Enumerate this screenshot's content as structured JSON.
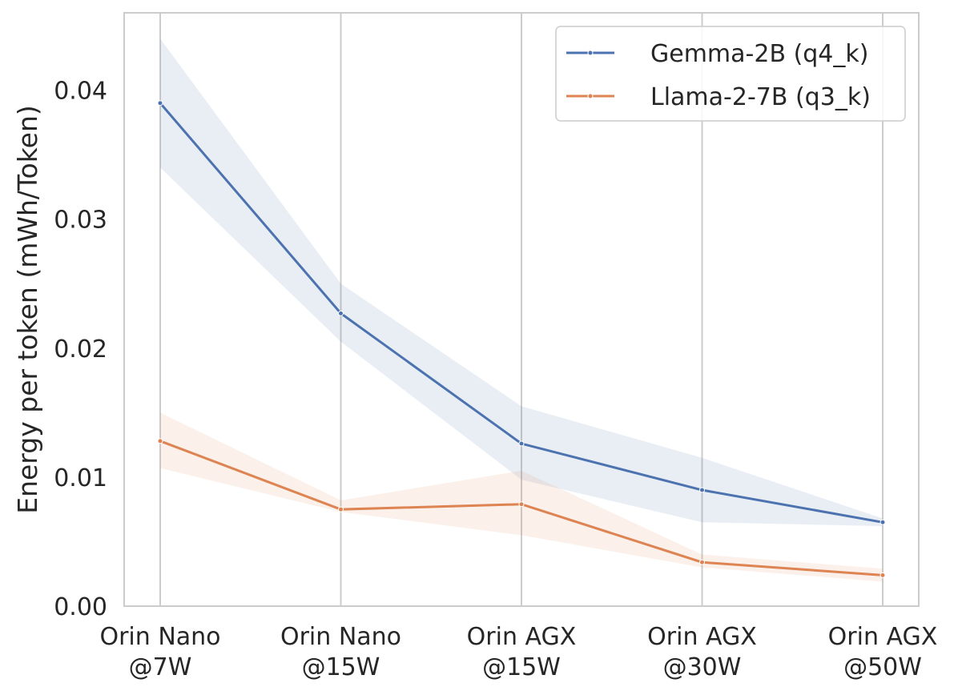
{
  "chart_data": {
    "type": "line",
    "title": "",
    "xlabel": "",
    "ylabel": "Energy per token (mWh/Token)",
    "categories": [
      [
        "Orin Nano",
        "@7W"
      ],
      [
        "Orin Nano",
        "@15W"
      ],
      [
        "Orin AGX",
        "@15W"
      ],
      [
        "Orin AGX",
        "@30W"
      ],
      [
        "Orin AGX",
        "@50W"
      ]
    ],
    "ylim": [
      0,
      0.046
    ],
    "yticks": [
      "0.00",
      "0.01",
      "0.02",
      "0.03",
      "0.04"
    ],
    "grid": true,
    "legend": "top-right",
    "series": [
      {
        "name": "Gemma-2B (q4_k)",
        "color": "#4c72b0",
        "values": [
          0.039,
          0.0227,
          0.0126,
          0.009,
          0.0065
        ],
        "ci_low": [
          0.034,
          0.0205,
          0.0098,
          0.0065,
          0.0062
        ],
        "ci_high": [
          0.044,
          0.025,
          0.0155,
          0.0115,
          0.0068
        ]
      },
      {
        "name": "Llama-2-7B (q3_k)",
        "color": "#dd8452",
        "values": [
          0.0128,
          0.0075,
          0.0079,
          0.0034,
          0.0024
        ],
        "ci_low": [
          0.0107,
          0.0073,
          0.0055,
          0.003,
          0.0019
        ],
        "ci_high": [
          0.015,
          0.0082,
          0.0105,
          0.004,
          0.0029
        ]
      }
    ]
  }
}
